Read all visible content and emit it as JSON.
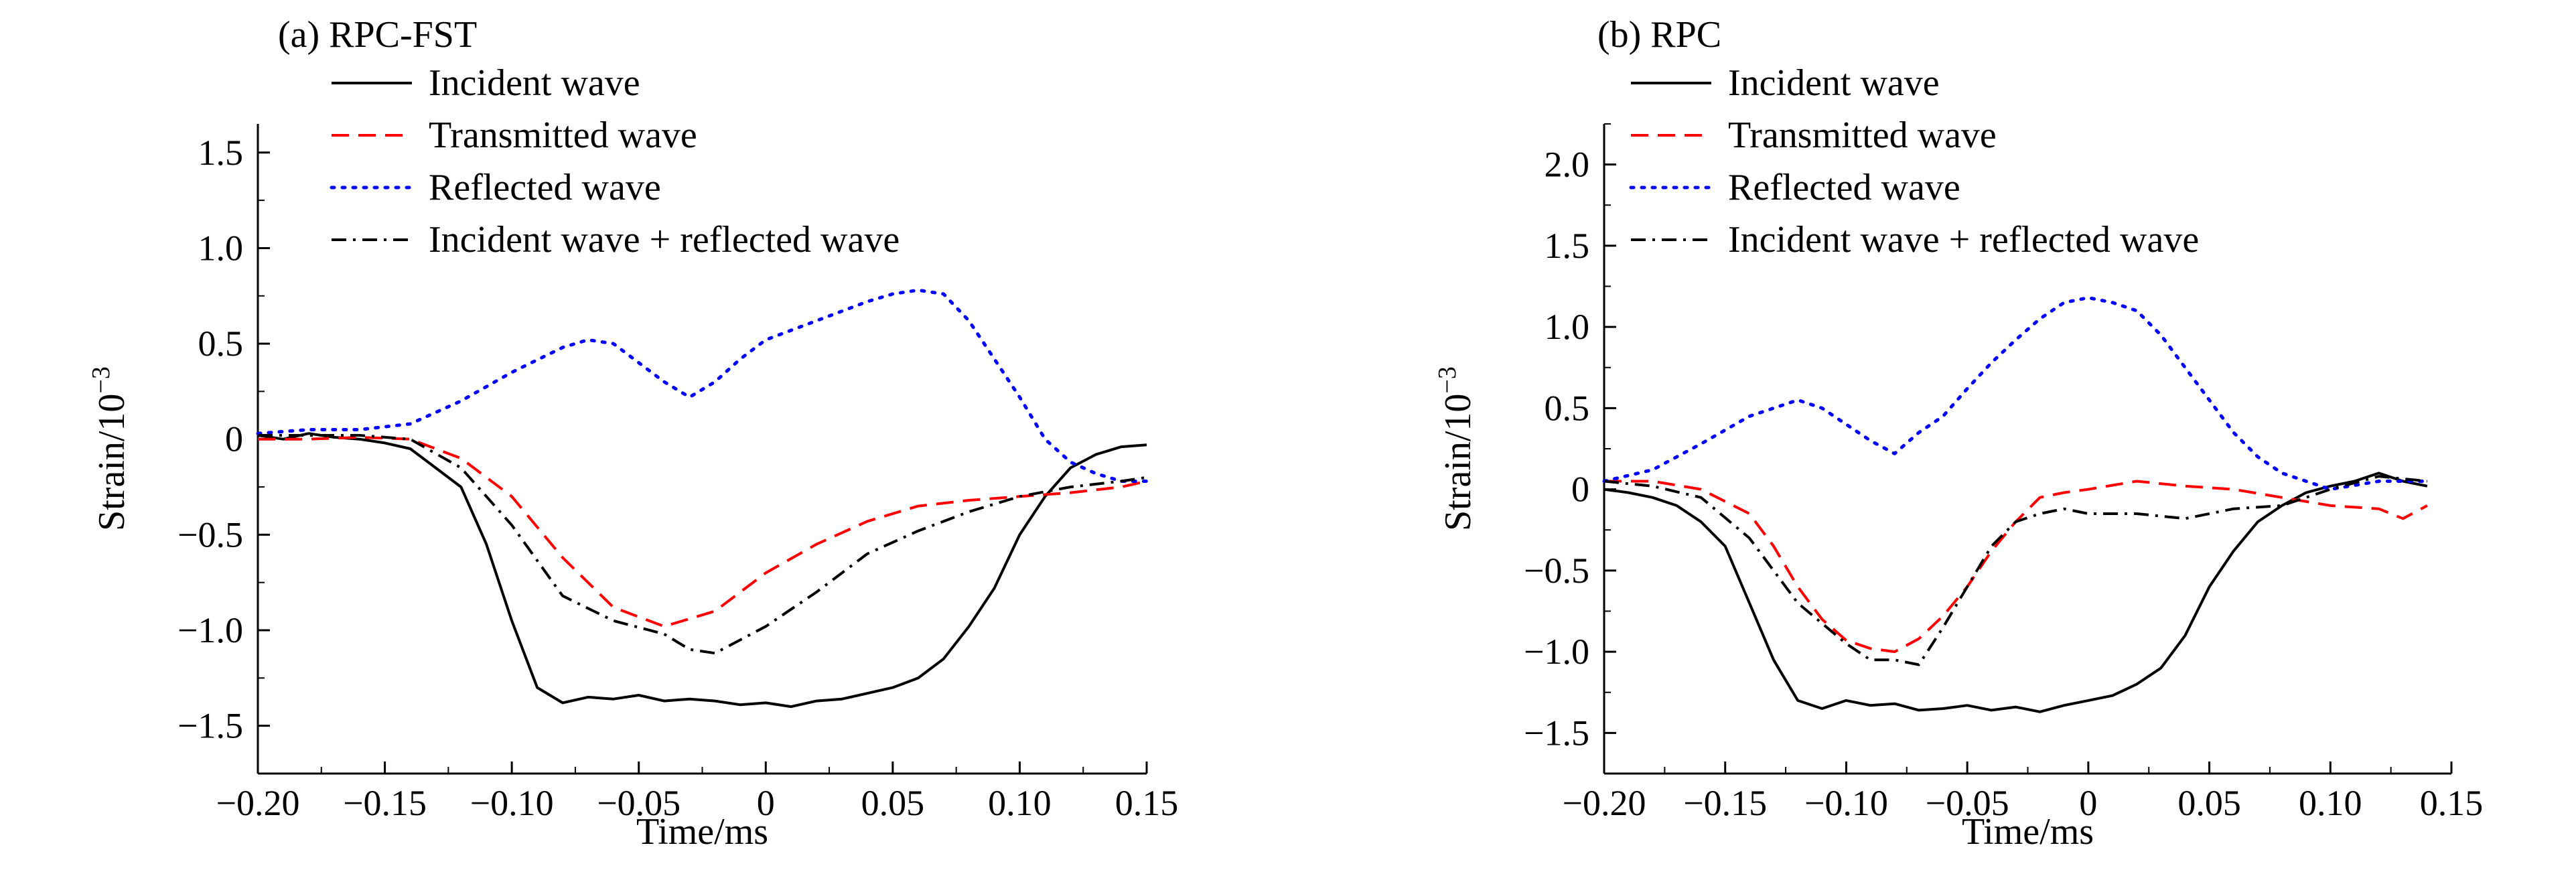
{
  "chart_data": [
    {
      "type": "line",
      "title": "(a) RPC-FST",
      "xlabel": "Time/ms",
      "ylabel": "Strain/10",
      "ylabel_exponent": "−3",
      "xlim": [
        -0.2,
        0.15
      ],
      "ylim": [
        -1.75,
        1.65
      ],
      "x_ticks": [
        -0.2,
        -0.15,
        -0.1,
        -0.05,
        0,
        0.05,
        0.1,
        0.15
      ],
      "x_tick_labels": [
        "−0.20",
        "−0.15",
        "−0.10",
        "−0.05",
        "0",
        "0.05",
        "0.10",
        "0.15"
      ],
      "y_ticks": [
        1.5,
        1.0,
        0.5,
        0,
        -0.5,
        -1.0,
        -1.5
      ],
      "y_tick_labels": [
        "1.5",
        "1.0",
        "0.5",
        "0",
        "−0.5",
        "−1.0",
        "−1.5"
      ],
      "legend_position": "top-left",
      "series": [
        {
          "name": "Incident wave",
          "style": "solid",
          "color": "#000000",
          "x": [
            -0.2,
            -0.19,
            -0.18,
            -0.17,
            -0.16,
            -0.15,
            -0.14,
            -0.13,
            -0.12,
            -0.11,
            -0.1,
            -0.09,
            -0.08,
            -0.07,
            -0.06,
            -0.05,
            -0.04,
            -0.03,
            -0.02,
            -0.01,
            0.0,
            0.01,
            0.02,
            0.03,
            0.04,
            0.05,
            0.06,
            0.07,
            0.08,
            0.09,
            0.1,
            0.11,
            0.12,
            0.13,
            0.14,
            0.15
          ],
          "y": [
            0.02,
            0.0,
            0.03,
            0.01,
            0.0,
            -0.02,
            -0.05,
            -0.15,
            -0.25,
            -0.55,
            -0.95,
            -1.3,
            -1.38,
            -1.35,
            -1.36,
            -1.34,
            -1.37,
            -1.36,
            -1.37,
            -1.39,
            -1.38,
            -1.4,
            -1.37,
            -1.36,
            -1.33,
            -1.3,
            -1.25,
            -1.15,
            -0.98,
            -0.78,
            -0.5,
            -0.3,
            -0.15,
            -0.08,
            -0.04,
            -0.03
          ]
        },
        {
          "name": "Transmitted wave",
          "style": "dashed",
          "color": "#ff0000",
          "x": [
            -0.2,
            -0.18,
            -0.16,
            -0.14,
            -0.12,
            -0.1,
            -0.08,
            -0.06,
            -0.04,
            -0.02,
            0.0,
            0.02,
            0.04,
            0.06,
            0.08,
            0.1,
            0.12,
            0.14,
            0.15
          ],
          "y": [
            0.0,
            0.0,
            0.01,
            0.0,
            -0.1,
            -0.3,
            -0.62,
            -0.88,
            -0.98,
            -0.9,
            -0.7,
            -0.55,
            -0.43,
            -0.35,
            -0.32,
            -0.3,
            -0.28,
            -0.25,
            -0.22
          ]
        },
        {
          "name": "Reflected wave",
          "style": "dotted",
          "color": "#0000ff",
          "x": [
            -0.2,
            -0.18,
            -0.16,
            -0.14,
            -0.12,
            -0.1,
            -0.08,
            -0.07,
            -0.06,
            -0.05,
            -0.04,
            -0.03,
            -0.02,
            -0.01,
            0.0,
            0.02,
            0.04,
            0.05,
            0.06,
            0.07,
            0.08,
            0.09,
            0.1,
            0.11,
            0.12,
            0.13,
            0.14,
            0.15
          ],
          "y": [
            0.03,
            0.05,
            0.05,
            0.08,
            0.2,
            0.35,
            0.48,
            0.52,
            0.5,
            0.4,
            0.3,
            0.22,
            0.3,
            0.42,
            0.52,
            0.62,
            0.72,
            0.76,
            0.78,
            0.76,
            0.62,
            0.42,
            0.22,
            0.0,
            -0.12,
            -0.18,
            -0.22,
            -0.22
          ]
        },
        {
          "name": "Incident wave + reflected wave",
          "style": "dashdot",
          "color": "#000000",
          "x": [
            -0.2,
            -0.18,
            -0.16,
            -0.14,
            -0.12,
            -0.1,
            -0.08,
            -0.06,
            -0.04,
            -0.03,
            -0.02,
            0.0,
            0.02,
            0.04,
            0.06,
            0.08,
            0.1,
            0.12,
            0.14,
            0.15
          ],
          "y": [
            0.02,
            0.02,
            0.02,
            0.0,
            -0.15,
            -0.45,
            -0.82,
            -0.95,
            -1.02,
            -1.1,
            -1.12,
            -0.98,
            -0.8,
            -0.6,
            -0.48,
            -0.38,
            -0.3,
            -0.25,
            -0.22,
            -0.2
          ]
        }
      ]
    },
    {
      "type": "line",
      "title": "(b) RPC",
      "xlabel": "Time/ms",
      "ylabel": "Strain/10",
      "ylabel_exponent": "−3",
      "xlim": [
        -0.2,
        0.15
      ],
      "ylim": [
        -1.75,
        2.25
      ],
      "x_ticks": [
        -0.2,
        -0.15,
        -0.1,
        -0.05,
        0,
        0.05,
        0.1,
        0.15
      ],
      "x_tick_labels": [
        "−0.20",
        "−0.15",
        "−0.10",
        "−0.05",
        "0",
        "0.05",
        "0.10",
        "0.15"
      ],
      "y_ticks": [
        2.0,
        1.5,
        1.0,
        0.5,
        0,
        -0.5,
        -1.0,
        -1.5
      ],
      "y_tick_labels": [
        "2.0",
        "1.5",
        "1.0",
        "0.5",
        "0",
        "−0.5",
        "−1.0",
        "−1.5"
      ],
      "legend_position": "top-left",
      "series": [
        {
          "name": "Incident wave",
          "style": "solid",
          "color": "#000000",
          "x": [
            -0.2,
            -0.19,
            -0.18,
            -0.17,
            -0.16,
            -0.15,
            -0.14,
            -0.13,
            -0.12,
            -0.11,
            -0.1,
            -0.09,
            -0.08,
            -0.07,
            -0.06,
            -0.05,
            -0.04,
            -0.03,
            -0.02,
            -0.01,
            0.0,
            0.01,
            0.02,
            0.03,
            0.04,
            0.05,
            0.06,
            0.07,
            0.08,
            0.09,
            0.1,
            0.11,
            0.12,
            0.13,
            0.14
          ],
          "y": [
            0.0,
            -0.02,
            -0.05,
            -0.1,
            -0.2,
            -0.35,
            -0.7,
            -1.05,
            -1.3,
            -1.35,
            -1.3,
            -1.33,
            -1.32,
            -1.36,
            -1.35,
            -1.33,
            -1.36,
            -1.34,
            -1.37,
            -1.33,
            -1.3,
            -1.27,
            -1.2,
            -1.1,
            -0.9,
            -0.6,
            -0.38,
            -0.2,
            -0.1,
            -0.02,
            0.02,
            0.05,
            0.1,
            0.05,
            0.02
          ]
        },
        {
          "name": "Transmitted wave",
          "style": "dashed",
          "color": "#ff0000",
          "x": [
            -0.2,
            -0.18,
            -0.16,
            -0.14,
            -0.13,
            -0.12,
            -0.11,
            -0.1,
            -0.09,
            -0.08,
            -0.07,
            -0.06,
            -0.05,
            -0.04,
            -0.03,
            -0.02,
            -0.01,
            0.0,
            0.02,
            0.04,
            0.06,
            0.08,
            0.1,
            0.12,
            0.13,
            0.14
          ],
          "y": [
            0.05,
            0.05,
            0.0,
            -0.15,
            -0.35,
            -0.6,
            -0.8,
            -0.93,
            -0.98,
            -1.0,
            -0.92,
            -0.78,
            -0.6,
            -0.38,
            -0.2,
            -0.05,
            -0.02,
            0.0,
            0.05,
            0.02,
            0.0,
            -0.05,
            -0.1,
            -0.12,
            -0.18,
            -0.1
          ]
        },
        {
          "name": "Reflected wave",
          "style": "dotted",
          "color": "#0000ff",
          "x": [
            -0.2,
            -0.18,
            -0.16,
            -0.14,
            -0.13,
            -0.12,
            -0.11,
            -0.1,
            -0.09,
            -0.08,
            -0.07,
            -0.06,
            -0.05,
            -0.04,
            -0.03,
            -0.02,
            -0.01,
            0.0,
            0.01,
            0.02,
            0.03,
            0.04,
            0.05,
            0.06,
            0.07,
            0.08,
            0.09,
            0.1,
            0.12,
            0.14
          ],
          "y": [
            0.05,
            0.12,
            0.28,
            0.45,
            0.5,
            0.55,
            0.5,
            0.4,
            0.3,
            0.22,
            0.35,
            0.45,
            0.62,
            0.78,
            0.92,
            1.05,
            1.15,
            1.18,
            1.15,
            1.1,
            0.95,
            0.75,
            0.55,
            0.35,
            0.2,
            0.1,
            0.05,
            0.0,
            0.05,
            0.05
          ]
        },
        {
          "name": "Incident wave + reflected wave",
          "style": "dashdot",
          "color": "#000000",
          "x": [
            -0.2,
            -0.18,
            -0.16,
            -0.14,
            -0.12,
            -0.1,
            -0.09,
            -0.08,
            -0.07,
            -0.06,
            -0.05,
            -0.04,
            -0.03,
            -0.02,
            -0.01,
            0.0,
            0.02,
            0.04,
            0.06,
            0.08,
            0.1,
            0.12,
            0.14
          ],
          "y": [
            0.05,
            0.02,
            -0.05,
            -0.3,
            -0.7,
            -0.95,
            -1.05,
            -1.05,
            -1.08,
            -0.85,
            -0.6,
            -0.35,
            -0.2,
            -0.15,
            -0.12,
            -0.15,
            -0.15,
            -0.18,
            -0.12,
            -0.1,
            0.0,
            0.08,
            0.05
          ]
        }
      ]
    }
  ]
}
